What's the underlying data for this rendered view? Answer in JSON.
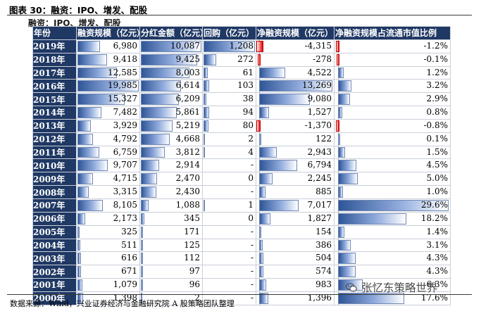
{
  "title": "图表 30：融资：IPO、增发、配股",
  "subtitle": "融资：IPO、增发、配股",
  "columns": [
    "年份",
    "融资规模（亿元）",
    "分红金额（亿元）",
    "回购（亿元）",
    "净融资规模（亿元）",
    "净融资规模占流通市值比例"
  ],
  "rows": [
    {
      "year": "2019年",
      "financing": "6,980",
      "dividend": "10,087",
      "buyback": "1,208",
      "net": "-4,315",
      "ratio": "-1.2%"
    },
    {
      "year": "2018年",
      "financing": "9,418",
      "dividend": "9,425",
      "buyback": "272",
      "net": "-278",
      "ratio": "-0.1%"
    },
    {
      "year": "2017年",
      "financing": "12,585",
      "dividend": "8,003",
      "buyback": "61",
      "net": "4,522",
      "ratio": "1.2%"
    },
    {
      "year": "2016年",
      "financing": "19,985",
      "dividend": "6,614",
      "buyback": "103",
      "net": "13,269",
      "ratio": "3.2%"
    },
    {
      "year": "2015年",
      "financing": "15,327",
      "dividend": "6,209",
      "buyback": "38",
      "net": "9,080",
      "ratio": "2.9%"
    },
    {
      "year": "2014年",
      "financing": "7,482",
      "dividend": "5,861",
      "buyback": "94",
      "net": "1,527",
      "ratio": "0.8%"
    },
    {
      "year": "2013年",
      "financing": "3,929",
      "dividend": "5,219",
      "buyback": "80",
      "net": "-1,370",
      "ratio": "-0.8%"
    },
    {
      "year": "2012年",
      "financing": "4,792",
      "dividend": "4,668",
      "buyback": "2",
      "net": "122",
      "ratio": "0.1%"
    },
    {
      "year": "2011年",
      "financing": "6,759",
      "dividend": "3,812",
      "buyback": "4",
      "net": "2,943",
      "ratio": "1.5%"
    },
    {
      "year": "2010年",
      "financing": "9,707",
      "dividend": "2,914",
      "buyback": "-",
      "net": "6,794",
      "ratio": "4.5%"
    },
    {
      "year": "2009年",
      "financing": "4,715",
      "dividend": "2,470",
      "buyback": "0",
      "net": "2,245",
      "ratio": "5.0%"
    },
    {
      "year": "2008年",
      "financing": "3,315",
      "dividend": "2,430",
      "buyback": "-",
      "net": "885",
      "ratio": "1.0%"
    },
    {
      "year": "2007年",
      "financing": "8,105",
      "dividend": "1,088",
      "buyback": "1",
      "net": "7,017",
      "ratio": "29.6%"
    },
    {
      "year": "2006年",
      "financing": "2,173",
      "dividend": "345",
      "buyback": "0",
      "net": "1,827",
      "ratio": "18.2%"
    },
    {
      "year": "2005年",
      "financing": "325",
      "dividend": "171",
      "buyback": "-",
      "net": "154",
      "ratio": "1.4%"
    },
    {
      "year": "2004年",
      "financing": "511",
      "dividend": "125",
      "buyback": "-",
      "net": "386",
      "ratio": "3.1%"
    },
    {
      "year": "2003年",
      "financing": "616",
      "dividend": "112",
      "buyback": "-",
      "net": "504",
      "ratio": "4.3%"
    },
    {
      "year": "2002年",
      "financing": "671",
      "dividend": "97",
      "buyback": "-",
      "net": "574",
      "ratio": "4.3%"
    },
    {
      "year": "2001年",
      "financing": "1,079",
      "dividend": "96",
      "buyback": "-",
      "net": "983",
      "ratio": "6.3%"
    },
    {
      "year": "2000年",
      "financing": "1,398",
      "dividend": "2",
      "buyback": "-",
      "net": "1,396",
      "ratio": "17.6%"
    }
  ],
  "source": "数据来源：Wind，兴业证券经济与金融研究院 A 股策略团队整理",
  "watermark": "张忆东策略世界",
  "colors": {
    "header": "#1f3864",
    "bar_positive": "#2f5597",
    "bar_negative": "#e00000"
  }
}
